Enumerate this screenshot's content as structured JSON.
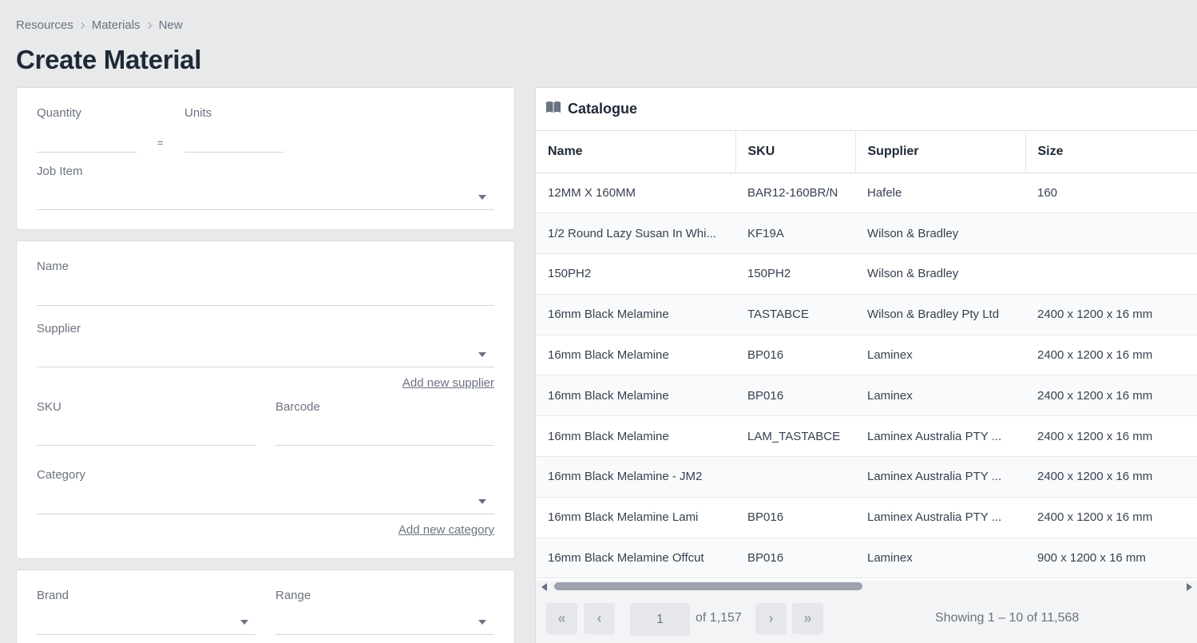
{
  "breadcrumb": [
    "Resources",
    "Materials",
    "New"
  ],
  "title": "Create Material",
  "form": {
    "quantity_label": "Quantity",
    "equals": "=",
    "units_label": "Units",
    "job_item_label": "Job Item",
    "name_label": "Name",
    "supplier_label": "Supplier",
    "add_supplier": "Add new supplier",
    "sku_label": "SKU",
    "barcode_label": "Barcode",
    "category_label": "Category",
    "add_category": "Add new category",
    "brand_label": "Brand",
    "range_label": "Range"
  },
  "catalogue": {
    "title": "Catalogue",
    "columns": [
      "Name",
      "SKU",
      "Supplier",
      "Size"
    ],
    "rows": [
      [
        "12MM X 160MM",
        "BAR12-160BR/N",
        "Hafele",
        "160"
      ],
      [
        "1/2 Round Lazy Susan In Whi...",
        "KF19A",
        "Wilson & Bradley",
        ""
      ],
      [
        "150PH2",
        "150PH2",
        "Wilson & Bradley",
        ""
      ],
      [
        "16mm Black Melamine",
        "TASTABCE",
        "Wilson & Bradley Pty Ltd",
        "2400 x 1200 x 16 mm"
      ],
      [
        "16mm Black Melamine",
        "BP016",
        "Laminex",
        "2400 x 1200 x 16 mm"
      ],
      [
        "16mm Black Melamine",
        "BP016",
        "Laminex",
        "2400 x 1200 x 16 mm"
      ],
      [
        "16mm Black Melamine",
        "LAM_TASTABCE",
        "Laminex Australia PTY ...",
        "2400 x 1200 x 16 mm"
      ],
      [
        "16mm Black Melamine - JM2",
        "",
        "Laminex Australia PTY ...",
        "2400 x 1200 x 16 mm"
      ],
      [
        "16mm Black Melamine Lami",
        "BP016",
        "Laminex Australia PTY ...",
        "2400 x 1200 x 16 mm"
      ],
      [
        "16mm Black Melamine Offcut",
        "BP016",
        "Laminex",
        "900 x 1200 x 16 mm"
      ]
    ],
    "pagination": {
      "page": "1",
      "of_label": "of 1,157",
      "showing": "Showing 1 – 10 of 11,568"
    }
  }
}
